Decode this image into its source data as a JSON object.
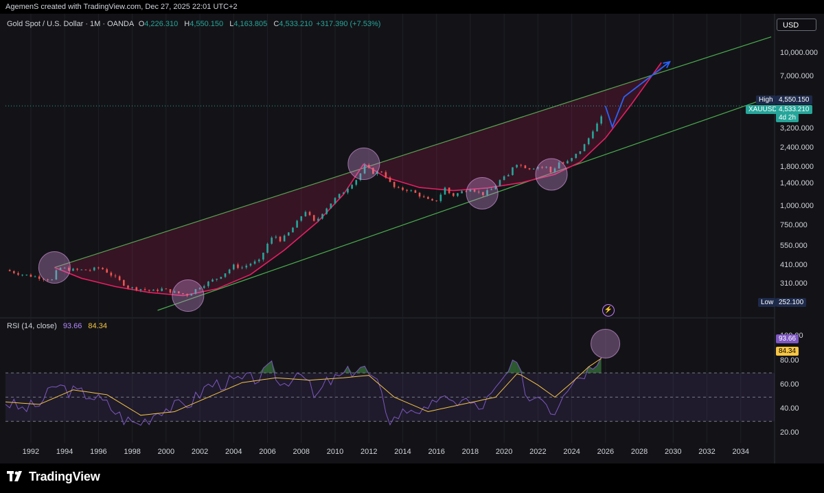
{
  "header": {
    "credit": "AgemenS created with TradingView.com, Dec 27, 2025 22:01 UTC+2"
  },
  "legend": {
    "symbol": "Gold Spot / U.S. Dollar · 1M · OANDA",
    "o_label": "O",
    "o_value": "4,226.310",
    "h_label": "H",
    "h_value": "4,550.150",
    "l_label": "L",
    "l_value": "4,163.805",
    "c_label": "C",
    "c_value": "4,533.210",
    "change": "+317.390 (+7.53%)"
  },
  "currency_button": "USD",
  "badges": {
    "high_label": "High",
    "high_value": "4,550.150",
    "ticker": "XAUUSD",
    "last_price": "4,533.210",
    "countdown": "4d 2h",
    "low_label": "Low",
    "low_value": "252.100",
    "rsi_value": "93.66",
    "rsi_ma_value": "84.34"
  },
  "rsi_legend": {
    "label": "RSI (14, close)",
    "value": "93.66",
    "ma_value": "84.34"
  },
  "brand": {
    "name": "TradingView"
  },
  "colors": {
    "up_candle": "#26a69a",
    "down_candle": "#ef5350",
    "channel": "#4caf50",
    "curve": "#e91e63",
    "projection": "#2962ff",
    "rsi": "#7e57c2",
    "rsi_ma": "#f6c544",
    "circle": "#ce93d8"
  },
  "chart_data": [
    {
      "type": "line",
      "title": "Gold Spot / U.S. Dollar · 1M · OANDA",
      "yscale": "log",
      "ylim": [
        210,
        14000
      ],
      "xlim": [
        1990.5,
        2036
      ],
      "xticks": [
        "1992",
        "1994",
        "1996",
        "1998",
        "2000",
        "2002",
        "2004",
        "2006",
        "2008",
        "2010",
        "2012",
        "2014",
        "2016",
        "2018",
        "2020",
        "2022",
        "2024",
        "2026",
        "2028",
        "2030",
        "2032",
        "2034"
      ],
      "yticks": [
        "10,000.000",
        "7,000.000",
        "3,200.000",
        "2,400.000",
        "1,800.000",
        "1,400.000",
        "1,000.000",
        "750.000",
        "550.000",
        "410.000",
        "310.000"
      ],
      "series": [
        {
          "name": "XAUUSD",
          "x": [
            1990.5,
            1991.5,
            1992.5,
            1993.3,
            1993.6,
            1994.5,
            1995.5,
            1996.1,
            1996.5,
            1997.2,
            1997.8,
            1998.5,
            1999.2,
            1999.7,
            2000.5,
            2001.3,
            2002.0,
            2002.5,
            2003.0,
            2003.5,
            2004.0,
            2004.5,
            2005.0,
            2005.5,
            2006.0,
            2006.4,
            2006.8,
            2007.3,
            2007.9,
            2008.2,
            2008.8,
            2009.3,
            2009.9,
            2010.5,
            2011.0,
            2011.4,
            2011.7,
            2012.3,
            2012.8,
            2013.3,
            2013.6,
            2014.3,
            2014.9,
            2015.5,
            2015.9,
            2016.5,
            2016.9,
            2017.5,
            2018.0,
            2018.7,
            2019.3,
            2019.8,
            2020.3,
            2020.6,
            2021.0,
            2021.5,
            2022.0,
            2022.5,
            2022.8,
            2023.2,
            2023.6,
            2024.0,
            2024.5,
            2024.9,
            2025.3,
            2025.7,
            2025.99
          ],
          "values": [
            385,
            360,
            345,
            330,
            400,
            385,
            385,
            400,
            375,
            330,
            295,
            290,
            280,
            290,
            275,
            265,
            300,
            320,
            340,
            370,
            410,
            400,
            425,
            440,
            570,
            650,
            600,
            680,
            830,
            950,
            780,
            930,
            1100,
            1250,
            1420,
            1550,
            1850,
            1650,
            1700,
            1400,
            1300,
            1290,
            1200,
            1100,
            1060,
            1320,
            1170,
            1250,
            1320,
            1200,
            1300,
            1500,
            1600,
            1950,
            1850,
            1780,
            1820,
            1800,
            1650,
            1950,
            1900,
            2050,
            2320,
            2650,
            3250,
            3650,
            4533
          ]
        },
        {
          "name": "Projection",
          "x": [
            2025.99,
            2026.4,
            2027.1,
            2029.8
          ],
          "values": [
            4533,
            3300,
            5200,
            8800
          ]
        }
      ],
      "annotations": [
        "ascending channel",
        "cup curve",
        "projected target"
      ]
    },
    {
      "type": "line",
      "title": "RSI (14, close)",
      "ylim": [
        15,
        107
      ],
      "yticks": [
        "100.00",
        "80.00",
        "60.00",
        "40.00",
        "20.00"
      ],
      "bands": {
        "upper": 70,
        "middle": 50,
        "lower": 30
      },
      "series": [
        {
          "name": "RSI",
          "x": [
            1990.5,
            1991.5,
            1992.5,
            1993.5,
            1994.3,
            1995.5,
            1996.5,
            1997.5,
            1998.3,
            1999.0,
            1999.6,
            2000.5,
            2001.5,
            2002.5,
            2003.5,
            2004.5,
            2005.5,
            2006.3,
            2006.8,
            2007.5,
            2008.0,
            2008.8,
            2009.5,
            2010.2,
            2011.0,
            2011.6,
            2012.5,
            2013.3,
            2013.8,
            2014.6,
            2015.5,
            2016.2,
            2016.8,
            2017.5,
            2018.5,
            2019.5,
            2020.3,
            2020.7,
            2021.5,
            2022.2,
            2022.9,
            2023.5,
            2024.2,
            2024.9,
            2025.5,
            2025.99
          ],
          "values": [
            46,
            40,
            44,
            60,
            55,
            52,
            44,
            32,
            28,
            33,
            40,
            42,
            46,
            60,
            62,
            64,
            66,
            75,
            58,
            68,
            74,
            48,
            62,
            66,
            72,
            76,
            60,
            30,
            36,
            42,
            36,
            54,
            42,
            50,
            40,
            55,
            72,
            78,
            48,
            54,
            36,
            56,
            66,
            72,
            82,
            93.66
          ]
        },
        {
          "name": "RSI MA",
          "x": [
            1990.5,
            1992.5,
            1994.5,
            1996.5,
            1998.5,
            2000.5,
            2002.5,
            2004.5,
            2006.5,
            2008.5,
            2010.5,
            2012.0,
            2013.5,
            2015.5,
            2017.5,
            2019.5,
            2020.8,
            2022.0,
            2023.0,
            2024.0,
            2025.0,
            2025.99
          ],
          "values": [
            46,
            44,
            56,
            52,
            35,
            38,
            50,
            62,
            66,
            64,
            66,
            68,
            50,
            38,
            44,
            50,
            70,
            60,
            50,
            62,
            75,
            84.34
          ]
        }
      ]
    }
  ]
}
